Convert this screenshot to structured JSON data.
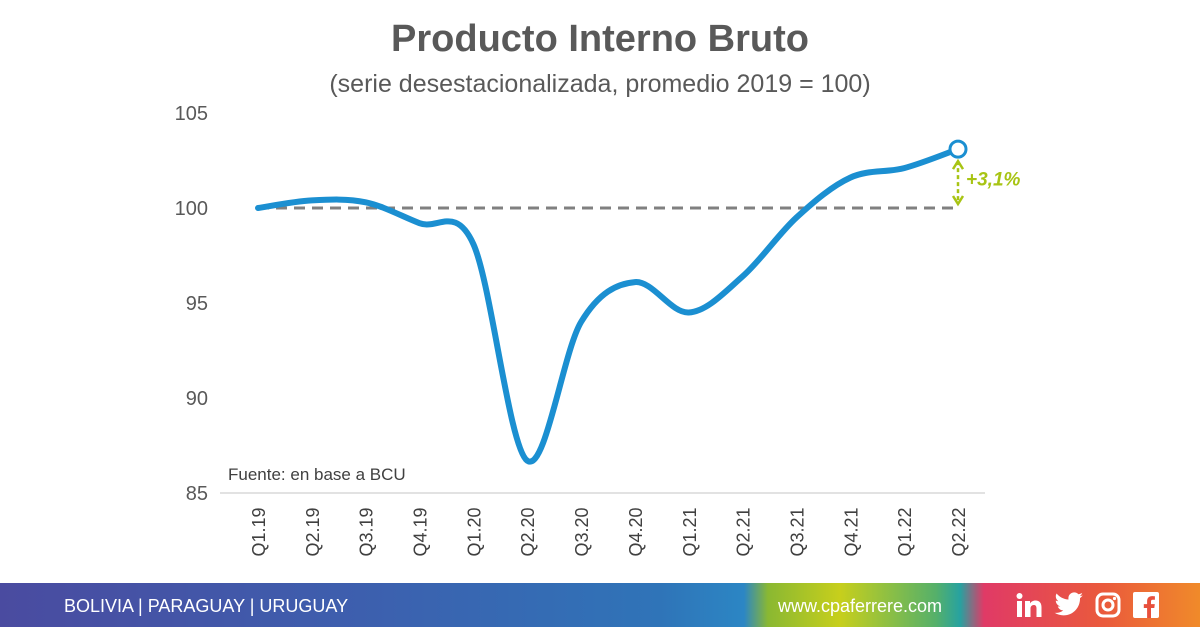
{
  "title": "Producto Interno Bruto",
  "subtitle": "(serie desestacionalizada, promedio 2019 = 100)",
  "source": "Fuente: en base a BCU",
  "annotation": "+3,1%",
  "footer": {
    "countries": "BOLIVIA  |  PARAGUAY  |  URUGUAY",
    "url": "www.cpaferrere.com",
    "social_icons": [
      "linkedin-icon",
      "twitter-icon",
      "instagram-icon",
      "facebook-icon"
    ]
  },
  "chart_data": {
    "type": "line",
    "categories": [
      "Q1.19",
      "Q2.19",
      "Q3.19",
      "Q4.19",
      "Q1.20",
      "Q2.20",
      "Q3.20",
      "Q4.20",
      "Q1.21",
      "Q2.21",
      "Q3.21",
      "Q4.21",
      "Q1.22",
      "Q2.22"
    ],
    "series": [
      {
        "values": [
          100.0,
          100.4,
          100.3,
          99.2,
          98.1,
          86.7,
          94.0,
          96.1,
          94.5,
          96.4,
          99.5,
          101.6,
          102.1,
          103.1
        ],
        "color": "#1b8fd1"
      }
    ],
    "reference_line": {
      "value": 100,
      "style": "dashed",
      "color": "#808080"
    },
    "yticks": [
      85,
      90,
      95,
      100,
      105
    ],
    "ylim": [
      85,
      105
    ],
    "grid": false,
    "last_point_marker": "open-circle",
    "annotation_color": "#a8c414"
  }
}
